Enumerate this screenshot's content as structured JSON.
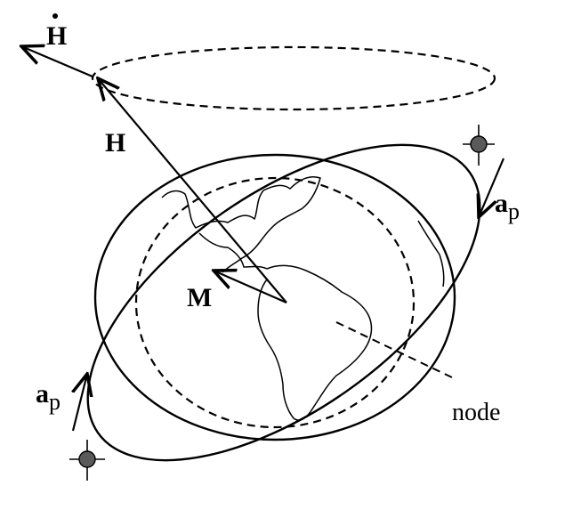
{
  "labels": {
    "h_dot": "H",
    "h": "H",
    "m": "M",
    "ap_symbol": "a",
    "ap_subscript": "p",
    "node": "node"
  },
  "colors": {
    "ink": "#000000",
    "background": "#ffffff",
    "satellite": "#5a5a5a"
  }
}
